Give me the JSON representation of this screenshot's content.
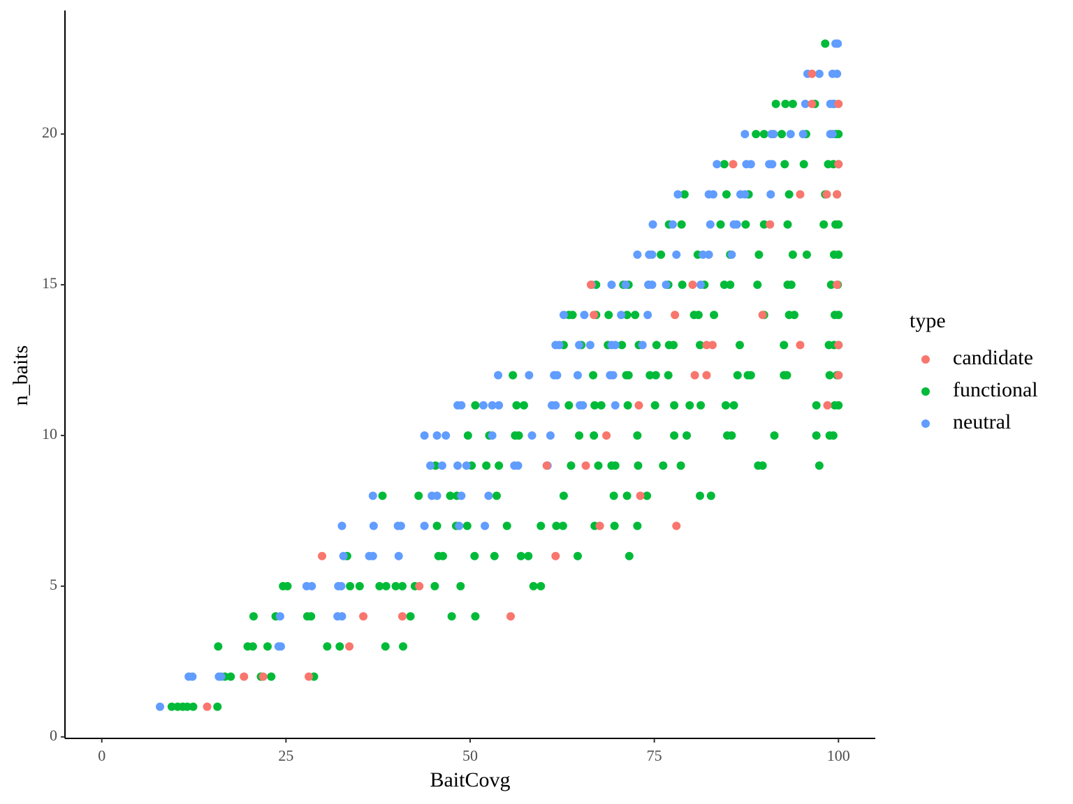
{
  "chart_data": {
    "type": "scatter",
    "x_label": "BaitCovg",
    "y_label": "n_baits",
    "legend_title": "type",
    "legend_position": "right",
    "grid": false,
    "xlim": [
      -5,
      105
    ],
    "ylim": [
      -0.05,
      24.1
    ],
    "xticks": [
      0,
      25,
      50,
      75,
      100
    ],
    "yticks": [
      0,
      5,
      10,
      15,
      20
    ],
    "series": [
      {
        "name": "candidate",
        "color": "#F8766D",
        "x": [
          14.3,
          19.3,
          21.9,
          28.1,
          33.6,
          35.5,
          40.8,
          55.5,
          43.1,
          29.9,
          61.6,
          67.6,
          78,
          73.1,
          60.4,
          65.7,
          68.5,
          72.9,
          98.5,
          80.5,
          82.1,
          100,
          82.1,
          82.9,
          94.8,
          100,
          66.8,
          77.8,
          89.7,
          66.4,
          80.2,
          99.8,
          90.7,
          94.8,
          98.4,
          99.8,
          85.7,
          100,
          96.4,
          100,
          96.4
        ],
        "values": [
          1,
          2,
          2,
          2,
          3,
          4,
          4,
          4,
          5,
          6,
          6,
          7,
          7,
          8,
          9,
          9,
          10,
          11,
          11,
          12,
          12,
          12,
          13,
          13,
          13,
          13,
          14,
          14,
          14,
          15,
          15,
          15,
          17,
          18,
          18,
          18,
          19,
          19,
          21,
          21,
          22
        ]
      },
      {
        "name": "functional",
        "color": "#00BA38",
        "x": [
          9.5,
          10.3,
          11,
          11.6,
          12.4,
          15.7,
          16.7,
          17.5,
          21.6,
          23,
          28.8,
          15.8,
          19.8,
          20.5,
          22.5,
          30.6,
          32.3,
          38.5,
          40.9,
          20.6,
          23.6,
          27.9,
          28.4,
          41.9,
          47.5,
          50.7,
          24.6,
          25.2,
          33.7,
          35,
          37.7,
          38.6,
          39.9,
          40.8,
          42.5,
          45.2,
          48.7,
          58.6,
          59.6,
          33.3,
          45.7,
          46.3,
          50.6,
          53.3,
          56.9,
          57.9,
          64.6,
          71.6,
          45.5,
          48.1,
          49.6,
          55,
          59.6,
          61.7,
          62.6,
          66.9,
          69.6,
          72.7,
          38.1,
          43,
          47.3,
          48.2,
          53.6,
          62.7,
          69.5,
          71.3,
          74,
          81.2,
          82.7,
          45.3,
          50.2,
          52.2,
          53.9,
          63.7,
          67.4,
          69.2,
          69.7,
          72.8,
          76.2,
          78.6,
          89.1,
          89.7,
          97.4,
          49.7,
          52.6,
          56.1,
          56.6,
          64.8,
          66.8,
          72.7,
          77.7,
          79.4,
          84.9,
          85.5,
          91.3,
          97,
          98.8,
          99.3,
          50.7,
          56.3,
          57.3,
          63.4,
          66.9,
          67.8,
          71.4,
          75.1,
          77.7,
          79.8,
          81.3,
          84.7,
          85.8,
          97,
          99.5,
          100,
          55.8,
          66.7,
          71.2,
          71.5,
          74.4,
          75.2,
          76.9,
          86.3,
          87.7,
          88.1,
          92.6,
          93,
          98.8,
          99.8,
          100,
          62.7,
          65.1,
          68.7,
          70.6,
          72.9,
          75.3,
          77,
          77.6,
          81.2,
          86.6,
          92.6,
          98.7,
          99.4,
          100,
          63.4,
          63.9,
          67.1,
          68.8,
          71.3,
          72.4,
          80.4,
          81,
          83.1,
          89.9,
          93.3,
          94,
          99.5,
          100,
          67.1,
          70.8,
          71.5,
          74.2,
          76.9,
          78.8,
          81.8,
          84.5,
          85.3,
          89,
          93.1,
          93.6,
          99,
          99.9,
          75.9,
          80.9,
          85.3,
          89.2,
          93.8,
          95.7,
          99.4,
          100,
          77,
          78.7,
          84,
          87.4,
          89.9,
          93.1,
          98,
          99.6,
          100,
          79.1,
          84.8,
          87.8,
          93.3,
          98.2,
          99.8,
          84.5,
          92.7,
          95.3,
          98.6,
          99.3,
          100,
          88.8,
          89.9,
          92.3,
          95.6,
          99.6,
          100,
          91.5,
          92.8,
          93.8,
          96.8,
          99.4,
          98.2
        ],
        "values": [
          1,
          1,
          1,
          1,
          1,
          1,
          2,
          2,
          2,
          2,
          2,
          3,
          3,
          3,
          3,
          3,
          3,
          3,
          3,
          4,
          4,
          4,
          4,
          4,
          4,
          4,
          5,
          5,
          5,
          5,
          5,
          5,
          5,
          5,
          5,
          5,
          5,
          5,
          5,
          6,
          6,
          6,
          6,
          6,
          6,
          6,
          6,
          6,
          7,
          7,
          7,
          7,
          7,
          7,
          7,
          7,
          7,
          7,
          8,
          8,
          8,
          8,
          8,
          8,
          8,
          8,
          8,
          8,
          8,
          9,
          9,
          9,
          9,
          9,
          9,
          9,
          9,
          9,
          9,
          9,
          9,
          9,
          9,
          10,
          10,
          10,
          10,
          10,
          10,
          10,
          10,
          10,
          10,
          10,
          10,
          10,
          10,
          10,
          11,
          11,
          11,
          11,
          11,
          11,
          11,
          11,
          11,
          11,
          11,
          11,
          11,
          11,
          11,
          11,
          12,
          12,
          12,
          12,
          12,
          12,
          12,
          12,
          12,
          12,
          12,
          12,
          12,
          12,
          12,
          13,
          13,
          13,
          13,
          13,
          13,
          13,
          13,
          13,
          13,
          13,
          13,
          13,
          13,
          14,
          14,
          14,
          14,
          14,
          14,
          14,
          14,
          14,
          14,
          14,
          14,
          14,
          14,
          15,
          15,
          15,
          15,
          15,
          15,
          15,
          15,
          15,
          15,
          15,
          15,
          15,
          15,
          16,
          16,
          16,
          16,
          16,
          16,
          16,
          16,
          17,
          17,
          17,
          17,
          17,
          17,
          17,
          17,
          17,
          18,
          18,
          18,
          18,
          18,
          18,
          19,
          19,
          19,
          19,
          19,
          19,
          20,
          20,
          20,
          20,
          20,
          20,
          21,
          21,
          21,
          21,
          21,
          23
        ]
      },
      {
        "name": "neutral",
        "color": "#619CFF",
        "x": [
          7.9,
          11.8,
          12.3,
          15.9,
          16.2,
          24,
          24.3,
          24.2,
          32,
          32.6,
          27.8,
          28.5,
          32.1,
          32.5,
          32.8,
          36.3,
          36.8,
          40.3,
          32.6,
          36.9,
          40.2,
          40.6,
          43.8,
          48.5,
          52,
          36.8,
          44.8,
          45.5,
          48.8,
          52.5,
          44.6,
          46.2,
          48.3,
          49.5,
          56,
          56.5,
          60.5,
          43.8,
          45.5,
          46.7,
          53,
          58.4,
          60.9,
          48.3,
          48.8,
          51.8,
          53,
          53.9,
          61.1,
          61.6,
          64.9,
          65.3,
          69.7,
          53.8,
          58,
          61.4,
          61.8,
          64.6,
          69,
          69.4,
          61.6,
          62.1,
          64.8,
          66.3,
          69.2,
          69.7,
          73.4,
          62.7,
          65.5,
          70.5,
          74.1,
          66.5,
          69.2,
          71.1,
          74.2,
          74.7,
          76.6,
          81.3,
          72.7,
          74.3,
          74.7,
          78,
          81.6,
          82.4,
          85.5,
          74.8,
          77.5,
          82.6,
          85.8,
          86.2,
          78.2,
          82.4,
          83,
          86.7,
          87.3,
          90.8,
          83.5,
          87.5,
          88.1,
          90.6,
          91,
          87.3,
          90.9,
          91.2,
          93.5,
          95.2,
          98.9,
          99.2,
          95.5,
          98.9,
          99.3,
          95.8,
          97.4,
          99.2,
          99.8,
          99.6,
          99.9
        ],
        "values": [
          1,
          2,
          2,
          2,
          2,
          3,
          3,
          4,
          4,
          4,
          5,
          5,
          5,
          5,
          6,
          6,
          6,
          6,
          7,
          7,
          7,
          7,
          7,
          7,
          7,
          8,
          8,
          8,
          8,
          8,
          9,
          9,
          9,
          9,
          9,
          9,
          9,
          10,
          10,
          10,
          10,
          10,
          10,
          11,
          11,
          11,
          11,
          11,
          11,
          11,
          11,
          11,
          11,
          12,
          12,
          12,
          12,
          12,
          12,
          12,
          13,
          13,
          13,
          13,
          13,
          13,
          13,
          14,
          14,
          14,
          14,
          15,
          15,
          15,
          15,
          15,
          15,
          15,
          16,
          16,
          16,
          16,
          16,
          16,
          16,
          17,
          17,
          17,
          17,
          17,
          18,
          18,
          18,
          18,
          18,
          18,
          19,
          19,
          19,
          19,
          19,
          20,
          20,
          20,
          20,
          20,
          20,
          20,
          21,
          21,
          21,
          22,
          22,
          22,
          22,
          23,
          23
        ]
      }
    ]
  }
}
